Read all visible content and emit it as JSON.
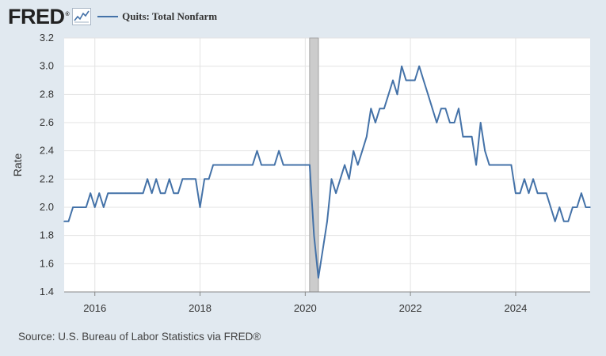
{
  "header": {
    "logo_text": "FRED",
    "logo_mark": "®",
    "logo_icon": "line-chart-icon",
    "legend_label": "Quits: Total Nonfarm"
  },
  "footer": {
    "source": "Source: U.S. Bureau of Labor Statistics via FRED®"
  },
  "colors": {
    "line": "#4472a8",
    "background": "#e1e9f0",
    "plot": "#ffffff",
    "recession": "#cccccc"
  },
  "chart_data": {
    "type": "line",
    "title": "",
    "xlabel": "",
    "ylabel": "Rate",
    "xlim": [
      "2015-06",
      "2025-06"
    ],
    "ylim": [
      1.4,
      3.2
    ],
    "yticks": [
      1.4,
      1.6,
      1.8,
      2.0,
      2.2,
      2.4,
      2.6,
      2.8,
      3.0,
      3.2
    ],
    "ytick_labels": [
      "1.4",
      "1.6",
      "1.8",
      "2.0",
      "2.2",
      "2.4",
      "2.6",
      "2.8",
      "3.0",
      "3.2"
    ],
    "xticks": [
      "2016-01",
      "2018-01",
      "2020-01",
      "2022-01",
      "2024-01"
    ],
    "xtick_labels": [
      "2016",
      "2018",
      "2020",
      "2022",
      "2024"
    ],
    "grid": true,
    "legend": "top-left",
    "recession": {
      "start": "2020-02",
      "end": "2020-04"
    },
    "series": [
      {
        "name": "Quits: Total Nonfarm",
        "x": [
          "2015-06",
          "2015-07",
          "2015-08",
          "2015-09",
          "2015-10",
          "2015-11",
          "2015-12",
          "2016-01",
          "2016-02",
          "2016-03",
          "2016-04",
          "2016-05",
          "2016-06",
          "2016-07",
          "2016-08",
          "2016-09",
          "2016-10",
          "2016-11",
          "2016-12",
          "2017-01",
          "2017-02",
          "2017-03",
          "2017-04",
          "2017-05",
          "2017-06",
          "2017-07",
          "2017-08",
          "2017-09",
          "2017-10",
          "2017-11",
          "2017-12",
          "2018-01",
          "2018-02",
          "2018-03",
          "2018-04",
          "2018-05",
          "2018-06",
          "2018-07",
          "2018-08",
          "2018-09",
          "2018-10",
          "2018-11",
          "2018-12",
          "2019-01",
          "2019-02",
          "2019-03",
          "2019-04",
          "2019-05",
          "2019-06",
          "2019-07",
          "2019-08",
          "2019-09",
          "2019-10",
          "2019-11",
          "2019-12",
          "2020-01",
          "2020-02",
          "2020-03",
          "2020-04",
          "2020-05",
          "2020-06",
          "2020-07",
          "2020-08",
          "2020-09",
          "2020-10",
          "2020-11",
          "2020-12",
          "2021-01",
          "2021-02",
          "2021-03",
          "2021-04",
          "2021-05",
          "2021-06",
          "2021-07",
          "2021-08",
          "2021-09",
          "2021-10",
          "2021-11",
          "2021-12",
          "2022-01",
          "2022-02",
          "2022-03",
          "2022-04",
          "2022-05",
          "2022-06",
          "2022-07",
          "2022-08",
          "2022-09",
          "2022-10",
          "2022-11",
          "2022-12",
          "2023-01",
          "2023-02",
          "2023-03",
          "2023-04",
          "2023-05",
          "2023-06",
          "2023-07",
          "2023-08",
          "2023-09",
          "2023-10",
          "2023-11",
          "2023-12",
          "2024-01",
          "2024-02",
          "2024-03",
          "2024-04",
          "2024-05",
          "2024-06",
          "2024-07",
          "2024-08",
          "2024-09",
          "2024-10",
          "2024-11",
          "2024-12",
          "2025-01",
          "2025-02",
          "2025-03",
          "2025-04",
          "2025-05",
          "2025-06"
        ],
        "values": [
          1.9,
          1.9,
          2.0,
          2.0,
          2.0,
          2.0,
          2.1,
          2.0,
          2.1,
          2.0,
          2.1,
          2.1,
          2.1,
          2.1,
          2.1,
          2.1,
          2.1,
          2.1,
          2.1,
          2.2,
          2.1,
          2.2,
          2.1,
          2.1,
          2.2,
          2.1,
          2.1,
          2.2,
          2.2,
          2.2,
          2.2,
          2.0,
          2.2,
          2.2,
          2.3,
          2.3,
          2.3,
          2.3,
          2.3,
          2.3,
          2.3,
          2.3,
          2.3,
          2.3,
          2.4,
          2.3,
          2.3,
          2.3,
          2.3,
          2.4,
          2.3,
          2.3,
          2.3,
          2.3,
          2.3,
          2.3,
          2.3,
          1.8,
          1.5,
          1.7,
          1.9,
          2.2,
          2.1,
          2.2,
          2.3,
          2.2,
          2.4,
          2.3,
          2.4,
          2.5,
          2.7,
          2.6,
          2.7,
          2.7,
          2.8,
          2.9,
          2.8,
          3.0,
          2.9,
          2.9,
          2.9,
          3.0,
          2.9,
          2.8,
          2.7,
          2.6,
          2.7,
          2.7,
          2.6,
          2.6,
          2.7,
          2.5,
          2.5,
          2.5,
          2.3,
          2.6,
          2.4,
          2.3,
          2.3,
          2.3,
          2.3,
          2.3,
          2.3,
          2.1,
          2.1,
          2.2,
          2.1,
          2.2,
          2.1,
          2.1,
          2.1,
          2.0,
          1.9,
          2.0,
          1.9,
          1.9,
          2.0,
          2.0,
          2.1,
          2.0,
          2.0
        ]
      }
    ]
  }
}
